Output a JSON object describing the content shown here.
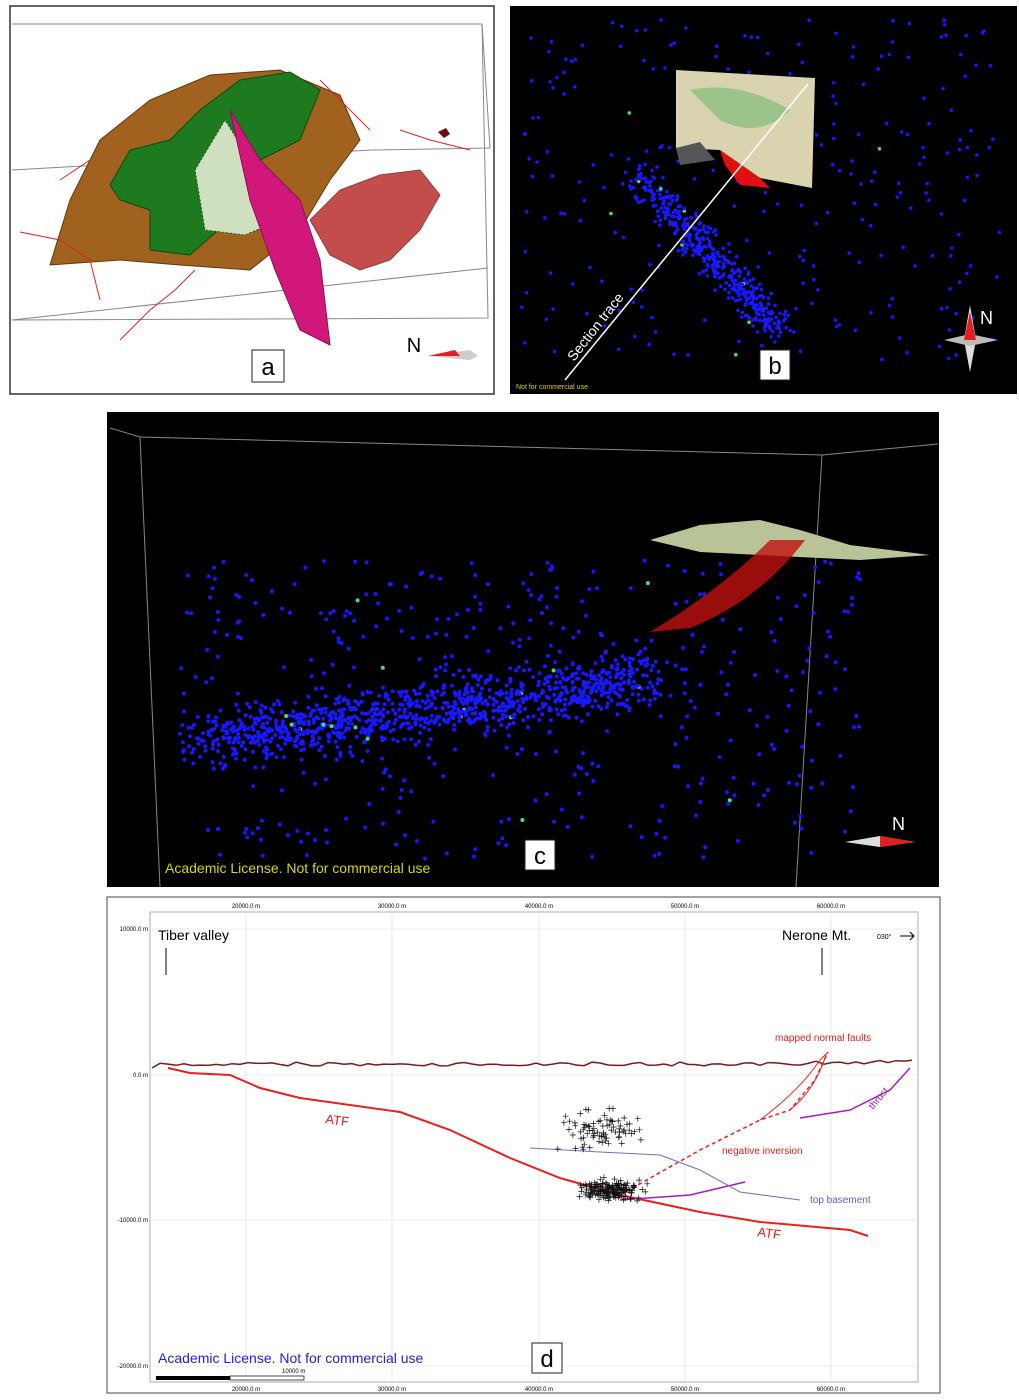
{
  "panels": [
    {
      "label": "a",
      "north": "N"
    },
    {
      "label": "b",
      "north": "N",
      "section_label": "Section trace",
      "license": "Not for commercial use"
    },
    {
      "label": "c",
      "north": "N",
      "license": "Academic License. Not for commercial use"
    },
    {
      "label": "d",
      "left_site": "Tiber valley",
      "right_site": "Nerone Mt.",
      "azimuth": "030°",
      "annotations": [
        "mapped normal faults",
        "ATF",
        "ATF",
        "thrust",
        "negative inversion",
        "top basement"
      ],
      "x_axis_labels": [
        "20000.0 m",
        "30000.0 m",
        "40000.0 m",
        "50000.0 m",
        "60000.0 m"
      ],
      "y_axis_labels": [
        "10000.0 m",
        "0.0 m",
        "-10000.0 m",
        "-20000.0 m"
      ],
      "scale_bar": "10000 m",
      "license": "Academic License. Not for commercial use"
    }
  ]
}
